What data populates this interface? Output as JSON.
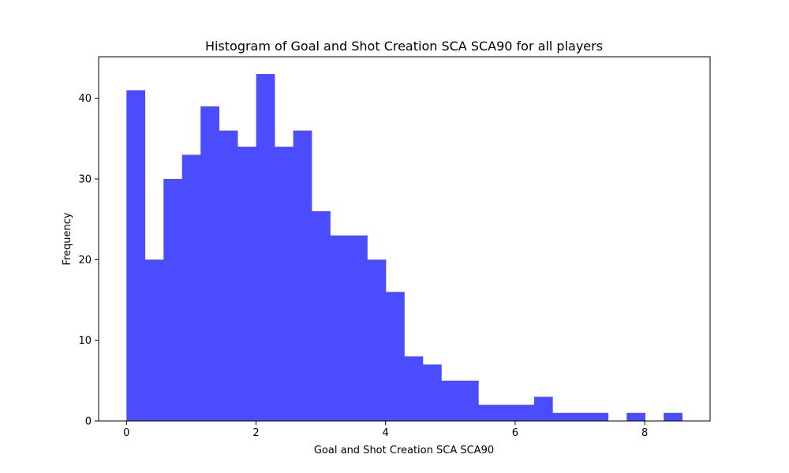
{
  "chart_data": {
    "type": "bar",
    "title": "Histogram of Goal and Shot Creation SCA SCA90 for all players",
    "xlabel": "Goal and Shot Creation SCA SCA90",
    "ylabel": "Frequency",
    "xlim": [
      -0.43,
      9.01
    ],
    "ylim": [
      0,
      45.15
    ],
    "bin_start": 0,
    "bin_end": 8.58,
    "xticks": [
      0,
      2,
      4,
      6,
      8
    ],
    "yticks": [
      0,
      10,
      20,
      30,
      40
    ],
    "color": "#4c4cff",
    "grid": false,
    "values": [
      41,
      20,
      30,
      33,
      39,
      36,
      34,
      43,
      34,
      36,
      26,
      23,
      23,
      20,
      16,
      8,
      7,
      5,
      5,
      2,
      2,
      2,
      3,
      1,
      1,
      1,
      0,
      1,
      0,
      1
    ]
  }
}
